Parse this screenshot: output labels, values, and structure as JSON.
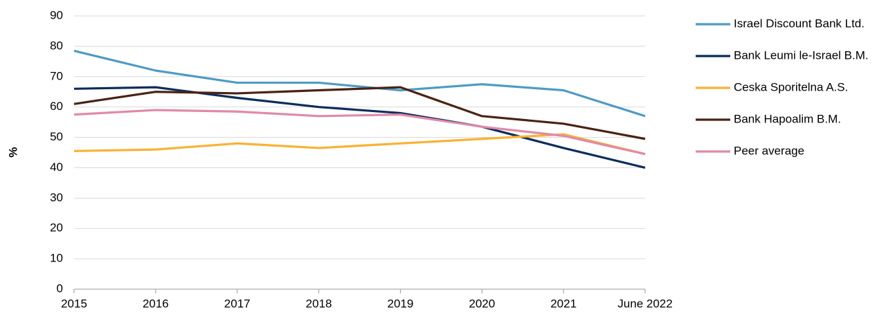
{
  "chart_data": {
    "type": "line",
    "y_label": "%",
    "categories": [
      "2015",
      "2016",
      "2017",
      "2018",
      "2019",
      "2020",
      "2021",
      "June 2022"
    ],
    "series": [
      {
        "name": "Israel Discount Bank Ltd.",
        "color": "#4f9bc4",
        "values": [
          78.5,
          72,
          68,
          68,
          65.5,
          67.5,
          65.5,
          57
        ]
      },
      {
        "name": "Bank Leumi le-Israel B.M.",
        "color": "#0b2d5b",
        "values": [
          66,
          66.5,
          63,
          60,
          58,
          53.5,
          46.5,
          40
        ]
      },
      {
        "name": "Ceska Sporitelna A.S.",
        "color": "#f9b233",
        "values": [
          45.5,
          46,
          48,
          46.5,
          48,
          49.5,
          51,
          44.5
        ]
      },
      {
        "name": "Bank Hapoalim B.M.",
        "color": "#4a2314",
        "values": [
          61,
          65,
          64.5,
          65.5,
          66.5,
          57,
          54.5,
          49.5
        ]
      },
      {
        "name": "Peer average",
        "color": "#e08aa8",
        "values": [
          57.5,
          59,
          58.5,
          57,
          57.5,
          53.5,
          50.5,
          44.5
        ]
      }
    ],
    "ylim": [
      0,
      90
    ],
    "yticks": [
      0,
      10,
      20,
      30,
      40,
      50,
      60,
      70,
      80,
      90
    ],
    "grid": true,
    "legend": "right"
  }
}
